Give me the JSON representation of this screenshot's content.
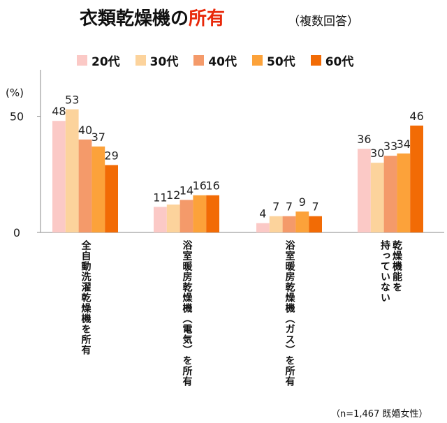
{
  "title_main": "衣類乾燥機の",
  "title_accent": "所有",
  "subtitle": "（複数回答）",
  "unit": "(%)",
  "note": "（n=1,467 既婚女性）",
  "chart_data": {
    "type": "bar",
    "categories": [
      "全自動洗濯乾燥機を所有",
      "浴室暖房乾燥機（電気）を所有",
      "浴室暖房乾燥機（ガス）を所有",
      "乾燥機能を持っていない"
    ],
    "category_lines": [
      [
        "全自動洗濯乾燥機を所有"
      ],
      [
        "浴室暖房乾燥機（電気）を所有"
      ],
      [
        "浴室暖房乾燥機（ガス）を所有"
      ],
      [
        "乾燥機能を",
        "持っていない"
      ]
    ],
    "series": [
      {
        "name": "20代",
        "color": "#fbc9c6",
        "values": [
          48,
          11,
          4,
          36
        ]
      },
      {
        "name": "30代",
        "color": "#fcd39c",
        "values": [
          53,
          12,
          7,
          30
        ]
      },
      {
        "name": "40代",
        "color": "#f49a6a",
        "values": [
          40,
          14,
          7,
          33
        ]
      },
      {
        "name": "50代",
        "color": "#fca23a",
        "values": [
          37,
          16,
          9,
          34
        ]
      },
      {
        "name": "60代",
        "color": "#f26b05",
        "values": [
          29,
          16,
          7,
          46
        ]
      }
    ],
    "yticks": [
      0,
      50
    ],
    "ylim": [
      0,
      70
    ],
    "grid": false,
    "legend_position": "top"
  }
}
